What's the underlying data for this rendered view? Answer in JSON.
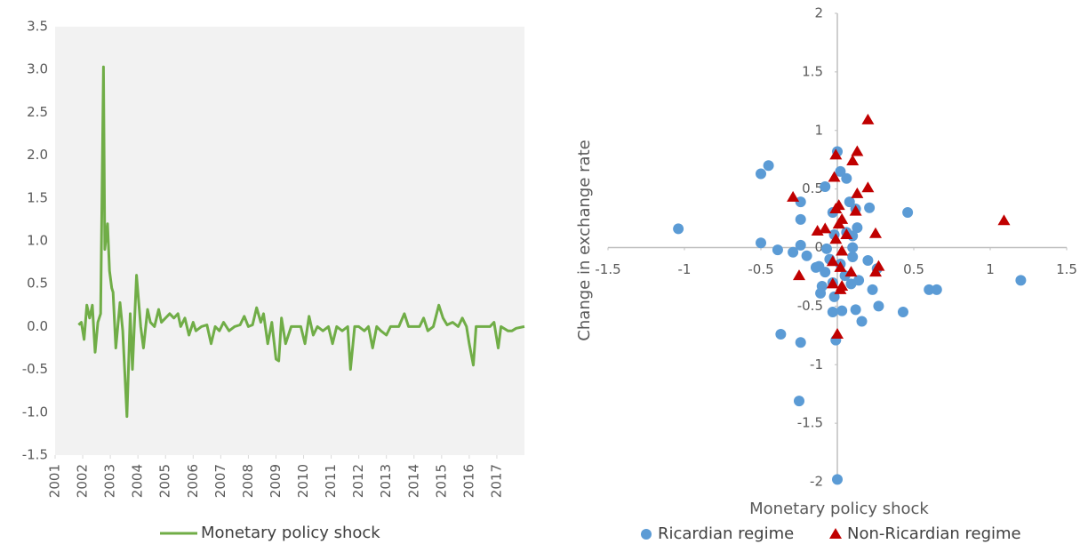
{
  "chart_data": [
    {
      "type": "line",
      "x": [
        2001.85,
        2001.95,
        2002.05,
        2002.15,
        2002.25,
        2002.35,
        2002.45,
        2002.55,
        2002.65,
        2002.75,
        2002.8,
        2002.9,
        2002.97,
        2003.05,
        2003.1,
        2003.2,
        2003.35,
        2003.45,
        2003.6,
        2003.72,
        2003.8,
        2003.95,
        2004.1,
        2004.2,
        2004.35,
        2004.45,
        2004.6,
        2004.75,
        2004.85,
        2005.0,
        2005.15,
        2005.3,
        2005.45,
        2005.55,
        2005.7,
        2005.85,
        2006.0,
        2006.1,
        2006.3,
        2006.5,
        2006.65,
        2006.8,
        2006.95,
        2007.1,
        2007.3,
        2007.5,
        2007.7,
        2007.85,
        2008.0,
        2008.15,
        2008.3,
        2008.45,
        2008.55,
        2008.7,
        2008.85,
        2009.0,
        2009.1,
        2009.2,
        2009.35,
        2009.55,
        2009.7,
        2009.9,
        2010.05,
        2010.2,
        2010.35,
        2010.5,
        2010.7,
        2010.9,
        2011.05,
        2011.2,
        2011.4,
        2011.6,
        2011.7,
        2011.85,
        2012.0,
        2012.2,
        2012.35,
        2012.5,
        2012.65,
        2012.8,
        2013.0,
        2013.15,
        2013.35,
        2013.45,
        2013.65,
        2013.8,
        2014.0,
        2014.2,
        2014.35,
        2014.5,
        2014.7,
        2014.9,
        2015.05,
        2015.2,
        2015.4,
        2015.6,
        2015.75,
        2015.9,
        2016.0,
        2016.15,
        2016.25,
        2016.5,
        2016.75,
        2016.9,
        2017.05,
        2017.15,
        2017.4,
        2017.55,
        2017.7,
        2018.0
      ],
      "series": [
        {
          "name": "Monetary policy shock",
          "color": "#70ad47",
          "values": [
            0.02,
            0.05,
            -0.15,
            0.25,
            0.1,
            0.25,
            -0.3,
            0.05,
            0.15,
            3.03,
            0.9,
            1.2,
            0.65,
            0.45,
            0.4,
            -0.25,
            0.28,
            -0.05,
            -1.05,
            0.15,
            -0.5,
            0.6,
            0.0,
            -0.25,
            0.2,
            0.05,
            0.0,
            0.2,
            0.05,
            0.1,
            0.15,
            0.1,
            0.15,
            0.0,
            0.1,
            -0.1,
            0.05,
            -0.05,
            0.0,
            0.02,
            -0.2,
            0.0,
            -0.05,
            0.05,
            -0.05,
            0.0,
            0.02,
            0.12,
            0.0,
            0.02,
            0.22,
            0.05,
            0.15,
            -0.2,
            0.05,
            -0.38,
            -0.4,
            0.1,
            -0.2,
            0.0,
            0.0,
            0.0,
            -0.2,
            0.12,
            -0.1,
            0.0,
            -0.05,
            0.0,
            -0.2,
            0.0,
            -0.05,
            0.0,
            -0.5,
            0.0,
            0.0,
            -0.05,
            0.0,
            -0.25,
            0.0,
            -0.05,
            -0.1,
            0.0,
            0.0,
            0.0,
            0.15,
            0.0,
            0.0,
            0.0,
            0.1,
            -0.05,
            0.0,
            0.25,
            0.1,
            0.02,
            0.05,
            0.0,
            0.1,
            0.0,
            -0.2,
            -0.45,
            0.0,
            0.0,
            0.0,
            0.05,
            -0.25,
            0.0,
            -0.05,
            -0.05,
            -0.02,
            0.0
          ]
        }
      ],
      "xlim": [
        2001,
        2018
      ],
      "xticks": [
        2001,
        2002,
        2003,
        2004,
        2005,
        2006,
        2007,
        2008,
        2009,
        2010,
        2011,
        2012,
        2013,
        2014,
        2015,
        2016,
        2017
      ],
      "ylim": [
        -1.5,
        3.5
      ],
      "yticks": [
        3.5,
        {
          "value": 3,
          "label": "3.0"
        },
        2.5,
        {
          "value": 2,
          "label": "2.0"
        },
        1.5,
        {
          "value": 1,
          "label": "1.0"
        },
        0.5,
        {
          "value": 0,
          "label": "0.0"
        },
        -0.5,
        {
          "value": -1,
          "label": "-1.0"
        },
        -1.5
      ],
      "legend": "bottom"
    },
    {
      "type": "scatter",
      "x_label": "Monetary policy shock",
      "y_label": "Change in exchange rate",
      "series": [
        {
          "name": "Ricardian regime",
          "color": "#5b9bd5",
          "marker": "circle",
          "x": [
            -1.04,
            -0.5,
            -0.45,
            -0.5,
            -0.39,
            -0.29,
            -0.37,
            -0.24,
            -0.25,
            0,
            -0.01,
            -0.24,
            -0.24,
            -0.24,
            -0.2,
            -0.08,
            0,
            0.02,
            0.06,
            -0.03,
            0.08,
            0.12,
            0.21,
            0.13,
            0.1,
            0.1,
            0.1,
            -0.12,
            -0.14,
            -0.08,
            -0.03,
            -0.1,
            -0.11,
            -0.02,
            -0.03,
            0.03,
            0.12,
            0.16,
            0.27,
            0.43,
            0.6,
            0.65,
            1.2,
            0.46,
            0.23,
            0.14,
            0.09,
            0.2,
            0.02,
            0.05,
            -0.05,
            -0.07,
            -0.02,
            0.06,
            0.26
          ],
          "values": [
            0.16,
            0.63,
            0.7,
            0.04,
            -0.02,
            -0.04,
            -0.74,
            -0.81,
            -1.31,
            -1.98,
            -0.79,
            0.39,
            0.24,
            0.02,
            -0.07,
            0.52,
            0.82,
            0.65,
            0.59,
            0.3,
            0.39,
            0.33,
            0.34,
            0.17,
            0.1,
            0.0,
            -0.08,
            -0.16,
            -0.17,
            -0.21,
            -0.3,
            -0.33,
            -0.39,
            -0.42,
            -0.55,
            -0.54,
            -0.53,
            -0.63,
            -0.5,
            -0.55,
            -0.36,
            -0.36,
            -0.28,
            0.3,
            -0.36,
            -0.28,
            -0.31,
            -0.11,
            -0.14,
            -0.24,
            -0.1,
            -0.01,
            0.11,
            0.13,
            -0.18
          ]
        },
        {
          "name": "Non-Ricardian regime",
          "color": "#c00000",
          "marker": "triangle",
          "x": [
            0.2,
            -0.01,
            0.13,
            0.1,
            -0.02,
            -0.29,
            0.2,
            0.13,
            0.01,
            -0.01,
            0.12,
            0.03,
            0.01,
            -0.13,
            -0.08,
            0.06,
            0.25,
            1.09,
            -0.01,
            0.03,
            -0.03,
            0.02,
            0.27,
            0.25,
            0.09,
            -0.25,
            -0.03,
            0.02,
            0.03,
            0
          ],
          "values": [
            1.09,
            0.79,
            0.82,
            0.74,
            0.6,
            0.43,
            0.51,
            0.46,
            0.36,
            0.33,
            0.31,
            0.24,
            0.2,
            0.14,
            0.16,
            0.11,
            0.12,
            0.23,
            0.07,
            -0.03,
            -0.12,
            -0.17,
            -0.16,
            -0.21,
            -0.21,
            -0.24,
            -0.31,
            -0.36,
            -0.33,
            -0.74
          ]
        }
      ],
      "xlim": [
        -1.5,
        1.5
      ],
      "xticks": [
        -1.5,
        -1,
        -0.5,
        0.5,
        1,
        1.5
      ],
      "ylim": [
        -2,
        2
      ],
      "yticks": [
        2,
        1.5,
        1,
        0.5,
        0,
        -0.5,
        -1,
        -1.5,
        -2
      ],
      "legend": "bottom"
    }
  ]
}
